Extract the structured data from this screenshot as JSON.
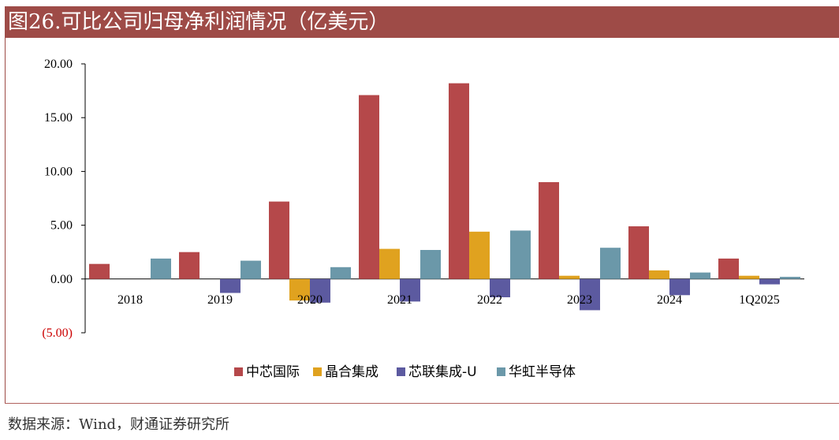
{
  "title": "图26.可比公司归母净利润情况（亿美元）",
  "source": "数据来源：Wind，财通证券研究所",
  "chart_data": {
    "type": "bar",
    "categories": [
      "2018",
      "2019",
      "2020",
      "2021",
      "2022",
      "2023",
      "2024",
      "1Q2025"
    ],
    "ylim": [
      -5,
      20
    ],
    "yticks": [
      "20.00",
      "15.00",
      "10.00",
      "5.00",
      "0.00",
      "(5.00)"
    ],
    "ytick_values": [
      20,
      15,
      10,
      5,
      0,
      -5
    ],
    "grid": false,
    "legend_position": "bottom",
    "series": [
      {
        "name": "中芯国际",
        "color": "#b5484a",
        "values": [
          1.4,
          2.5,
          7.2,
          17.1,
          18.2,
          9.0,
          4.9,
          1.9
        ]
      },
      {
        "name": "晶合集成",
        "color": "#e0a21f",
        "values": [
          0.0,
          0.0,
          -2.0,
          2.8,
          4.4,
          0.3,
          0.8,
          0.3
        ]
      },
      {
        "name": "芯联集成-U",
        "color": "#5c5aa0",
        "values": [
          0.0,
          -1.3,
          -2.2,
          -2.1,
          -1.7,
          -2.9,
          -1.5,
          -0.5
        ]
      },
      {
        "name": "华虹半导体",
        "color": "#6b98a9",
        "values": [
          1.9,
          1.7,
          1.1,
          2.7,
          4.5,
          2.9,
          0.6,
          0.2
        ]
      }
    ]
  }
}
